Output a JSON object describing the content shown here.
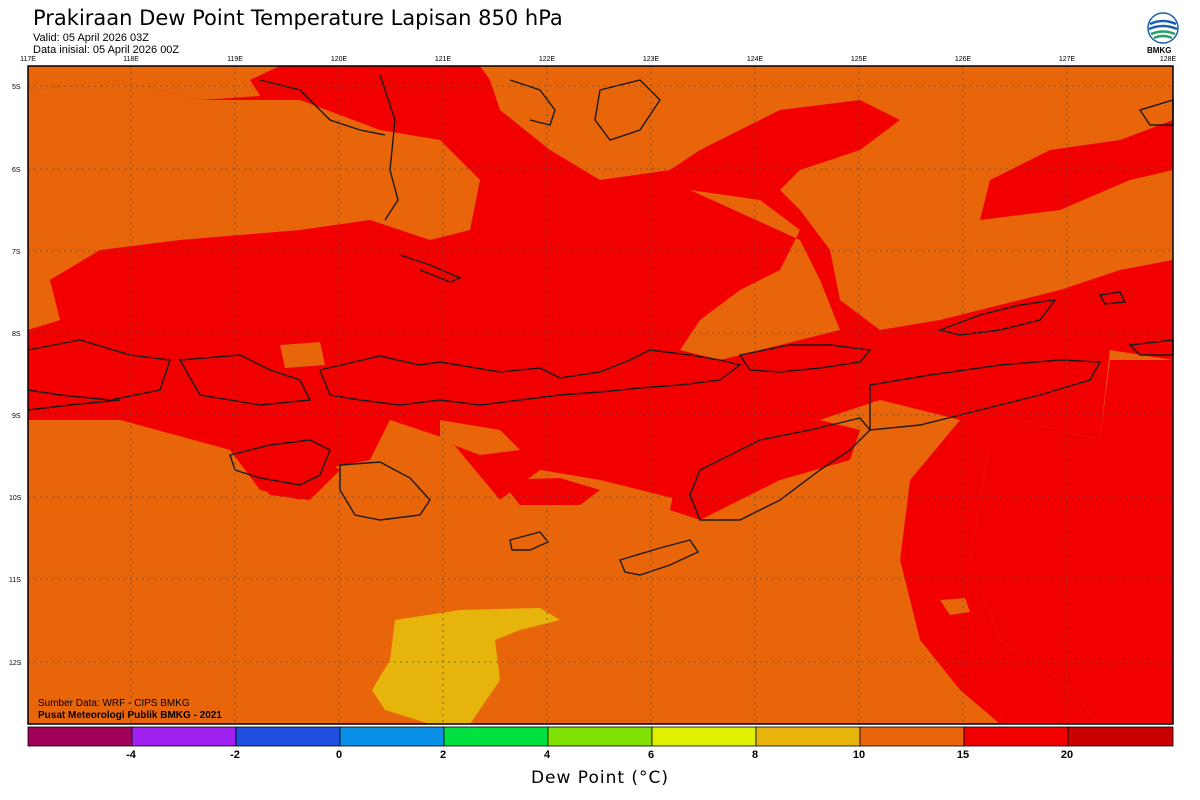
{
  "header": {
    "title": "Prakiraan Dew Point Temperature Lapisan 850 hPa",
    "valid": "Valid: 05 April 2026 03Z",
    "init": "Data inisial: 05 April 2026 00Z",
    "logo_text": "BMKG"
  },
  "map": {
    "lon_labels": [
      "117E",
      "118E",
      "119E",
      "120E",
      "121E",
      "122E",
      "123E",
      "124E",
      "125E",
      "126E",
      "127E",
      "128E"
    ],
    "lat_labels": [
      "5S",
      "6S",
      "7S",
      "8S",
      "9S",
      "10S",
      "11S",
      "12S"
    ],
    "colors": {
      "orange": "#e8650a",
      "red": "#f20000",
      "yellow": "#e6b40a",
      "coast": "#1a1a1a",
      "grid": "#555555"
    }
  },
  "credits": {
    "source": "Sumber Data: WRF - CIPS BMKG",
    "center": "Pusat Meteorologi Publik BMKG - 2021"
  },
  "colorbar": {
    "title": "Dew Point (°C)",
    "ticks": [
      "-4",
      "-2",
      "0",
      "2",
      "4",
      "6",
      "8",
      "10",
      "15",
      "20"
    ],
    "colors": [
      "#a0005a",
      "#a020f0",
      "#2050e0",
      "#0a90e6",
      "#00e040",
      "#80e000",
      "#e0f000",
      "#e6b40a",
      "#e8650a",
      "#f20000",
      "#c80000"
    ]
  }
}
